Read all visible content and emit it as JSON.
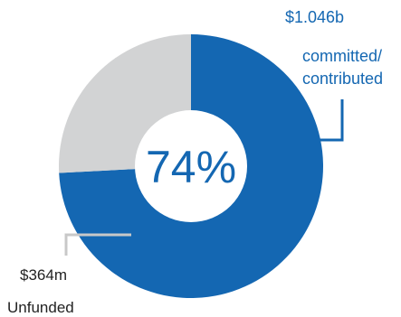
{
  "chart_data": {
    "type": "pie",
    "style": "donut",
    "center_label": "74%",
    "slices": [
      {
        "name": "committed/contributed",
        "label_lines": [
          "committed/",
          "contributed"
        ],
        "amount": "$1.046b",
        "value": 1046,
        "color": "#1467b2"
      },
      {
        "name": "Unfunded",
        "label_lines": [
          "Unfunded"
        ],
        "amount": "$364m",
        "value": 364,
        "color": "#d2d3d4"
      }
    ],
    "colors": {
      "center_fill": "#ffffff",
      "center_text": "#1467b2",
      "committed_label": "#1467b2",
      "unfunded_label": "#222222",
      "callout_committed": "#1467b2",
      "callout_unfunded": "#c8c8c8"
    }
  }
}
